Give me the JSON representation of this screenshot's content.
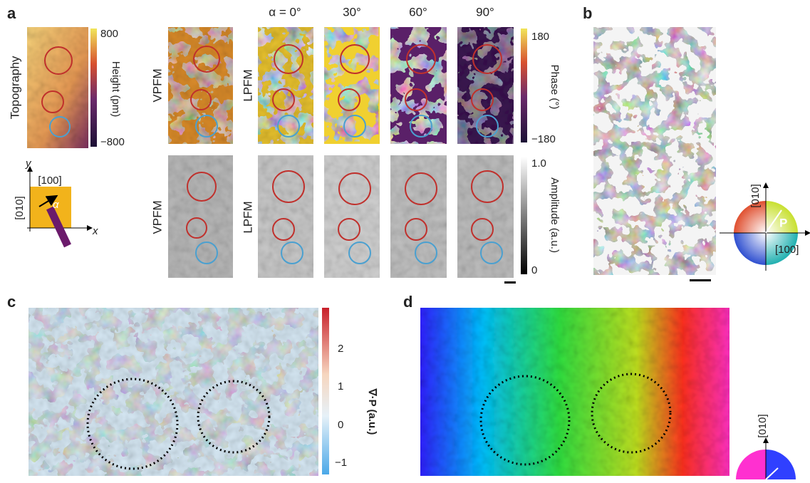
{
  "panel_a": {
    "label": "a",
    "topography": {
      "title": "Topography",
      "cbar_max": "800",
      "cbar_min": "−800",
      "cbar_label": "Height (pm)"
    },
    "axes": {
      "y": "y",
      "x": "x",
      "x_dir": "[100]",
      "y_dir": "[010]",
      "angle": "α"
    },
    "phase_row": {
      "vpfm": "VPFM",
      "lpfm": "LPFM"
    },
    "amp_row": {
      "vpfm": "VPFM",
      "lpfm": "LPFM"
    },
    "angles": [
      "α = 0°",
      "30°",
      "60°",
      "90°"
    ],
    "phase_cbar": {
      "max": "180",
      "min": "−180",
      "label": "Phase (°)"
    },
    "amp_cbar": {
      "max": "1.0",
      "min": "0",
      "label": "Amplitude (a.u.)"
    }
  },
  "panel_b": {
    "label": "b",
    "wheel": {
      "y_dir": "[010]",
      "vector": "P",
      "x_dir": "[100]"
    }
  },
  "panel_c": {
    "label": "c",
    "cbar_ticks": [
      "2",
      "1",
      "0",
      "−1"
    ],
    "cbar_label": "∇·P (a.u.)"
  },
  "panel_d": {
    "label": "d",
    "wheel": {
      "y_dir": "[010]"
    }
  }
}
